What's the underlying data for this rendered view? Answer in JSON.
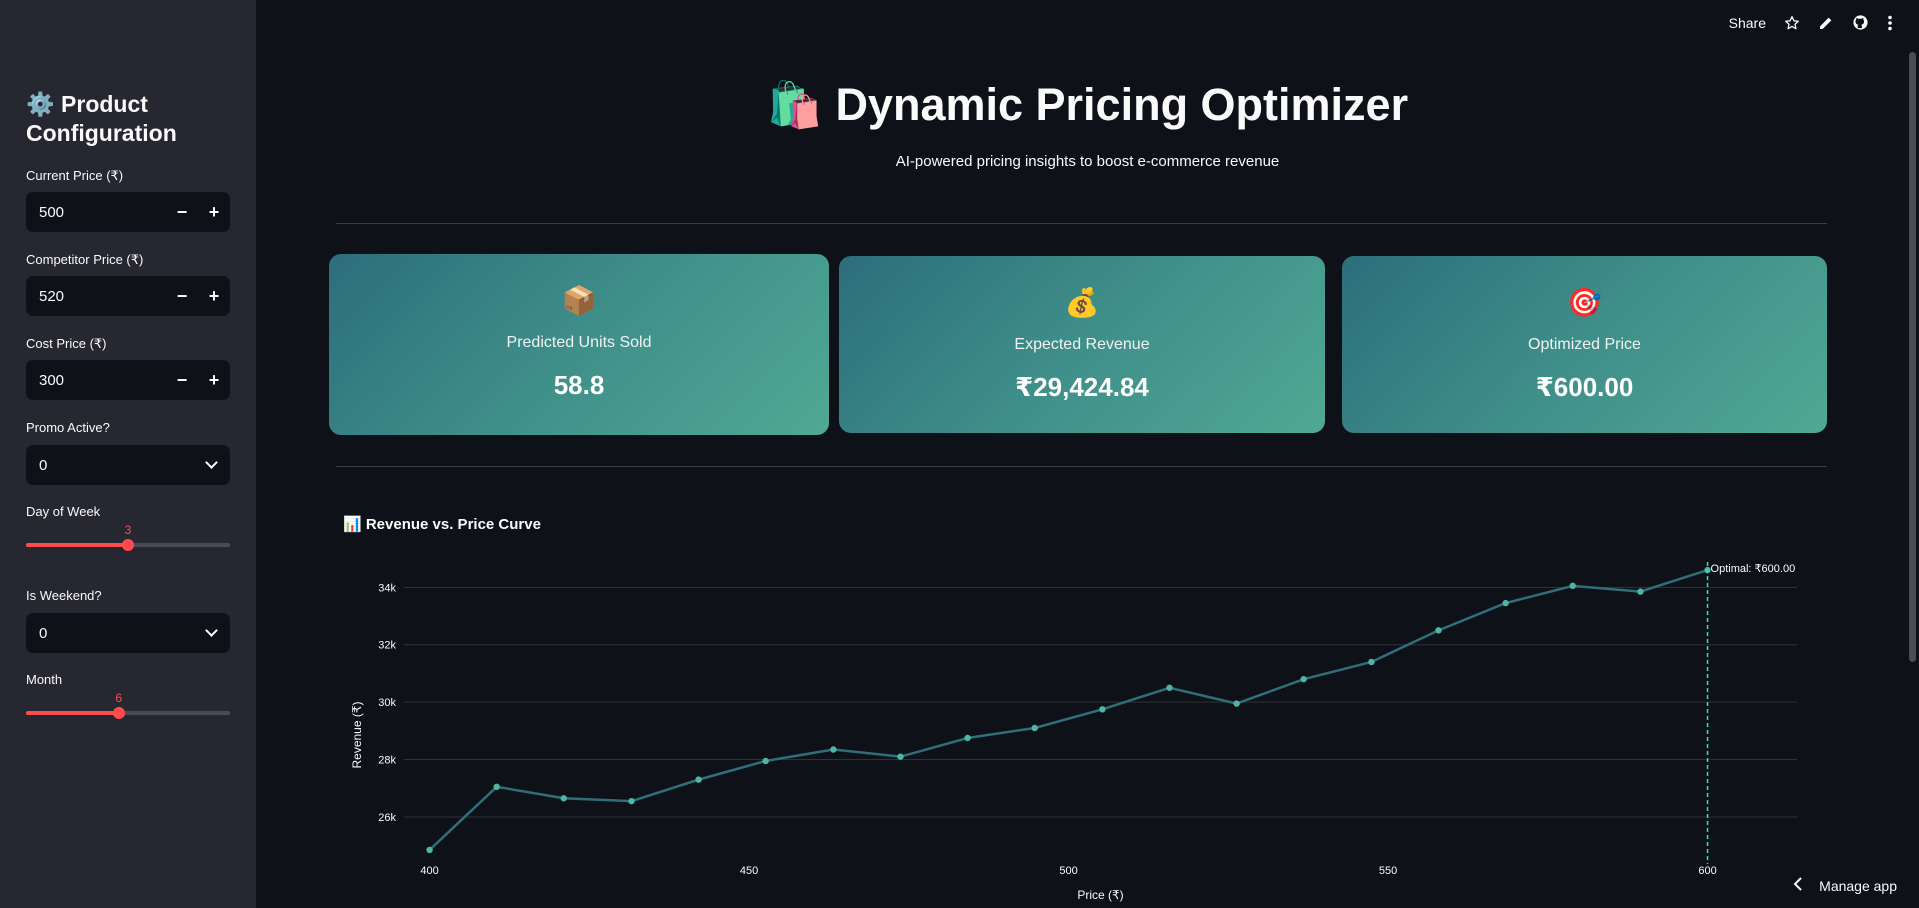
{
  "sidebar": {
    "title": "⚙️ Product Configuration",
    "current_price": {
      "label": "Current Price (₹)",
      "value": "500"
    },
    "competitor_price": {
      "label": "Competitor Price (₹)",
      "value": "520"
    },
    "cost_price": {
      "label": "Cost Price (₹)",
      "value": "300"
    },
    "promo_active": {
      "label": "Promo Active?",
      "value": "0"
    },
    "day_of_week": {
      "label": "Day of Week",
      "value": "3",
      "min": 0,
      "max": 6
    },
    "is_weekend": {
      "label": "Is Weekend?",
      "value": "0"
    },
    "month": {
      "label": "Month",
      "value": "6",
      "min": 1,
      "max": 12
    },
    "minus": "−",
    "plus": "+"
  },
  "topbar": {
    "share": "Share"
  },
  "header": {
    "title": "🛍️ Dynamic Pricing Optimizer",
    "subtitle": "AI-powered pricing insights to boost e-commerce revenue"
  },
  "cards": [
    {
      "icon": "📦",
      "label": "Predicted Units Sold",
      "value": "58.8"
    },
    {
      "icon": "💰",
      "label": "Expected Revenue",
      "value": "₹29,424.84"
    },
    {
      "icon": "🎯",
      "label": "Optimized Price",
      "value": "₹600.00"
    }
  ],
  "chart_section": {
    "title": "📊 Revenue vs. Price Curve"
  },
  "chart_data": {
    "type": "line",
    "xlabel": "Price (₹)",
    "ylabel": "Revenue (₹)",
    "x": [
      400,
      410.5,
      421,
      431.6,
      442.1,
      452.6,
      463.2,
      473.7,
      484.2,
      494.7,
      505.3,
      515.8,
      526.3,
      536.8,
      547.4,
      557.9,
      568.4,
      578.9,
      589.5,
      600
    ],
    "y": [
      24850,
      27050,
      26650,
      26550,
      27300,
      27950,
      28350,
      28100,
      28750,
      29100,
      29750,
      30500,
      29950,
      30800,
      31400,
      32500,
      33450,
      34050,
      33850,
      34600
    ],
    "x_ticks": [
      400,
      450,
      500,
      550,
      600
    ],
    "y_ticks": [
      26000,
      28000,
      30000,
      32000,
      34000
    ],
    "y_tick_labels": [
      "26k",
      "28k",
      "30k",
      "32k",
      "34k"
    ],
    "xlim": [
      396,
      614
    ],
    "ylim": [
      24500,
      35300
    ],
    "grid": true,
    "line_color": "#2f6f7c",
    "marker_color": "#4db6a1",
    "annotation": {
      "x": 600,
      "text": "Optimal: ₹600.00"
    }
  },
  "footer": {
    "manage": "Manage app"
  }
}
